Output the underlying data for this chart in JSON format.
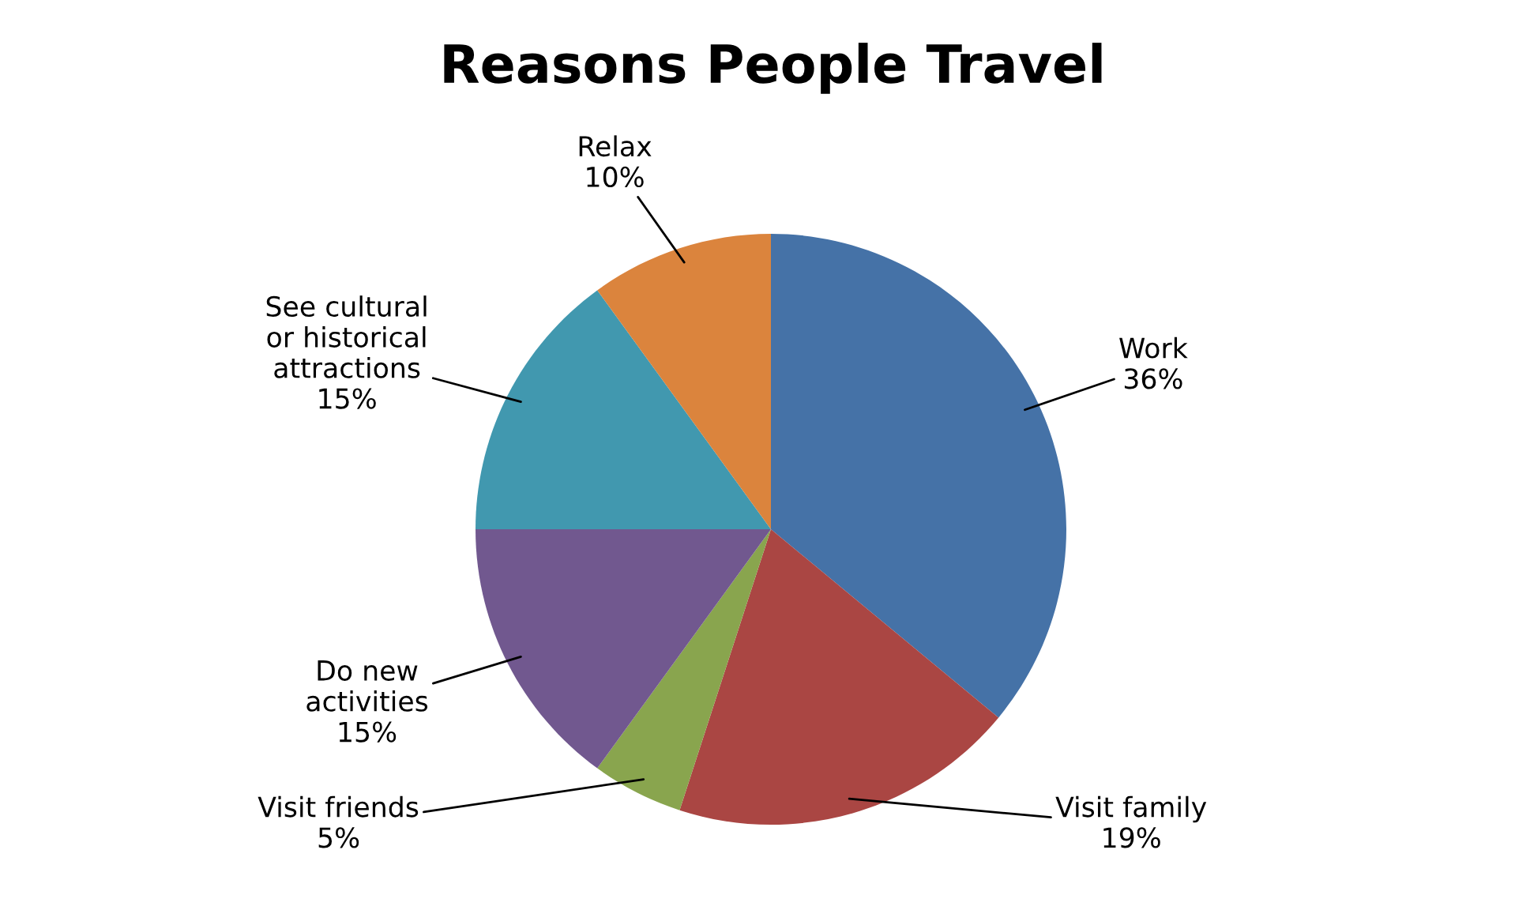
{
  "chart_data": {
    "type": "pie",
    "title": "Reasons People Travel",
    "categories": [
      "Work",
      "Visit family",
      "Visit friends",
      "Do new\nactivities",
      "See cultural\nor historical\nattractions",
      "Relax"
    ],
    "values": [
      36,
      19,
      5,
      15,
      15,
      10
    ],
    "value_labels": [
      "36%",
      "19%",
      "5%",
      "15%",
      "15%",
      "10%"
    ],
    "colors": [
      "#4572a7",
      "#aa4643",
      "#89a54e",
      "#71588f",
      "#4198af",
      "#db843d"
    ]
  }
}
